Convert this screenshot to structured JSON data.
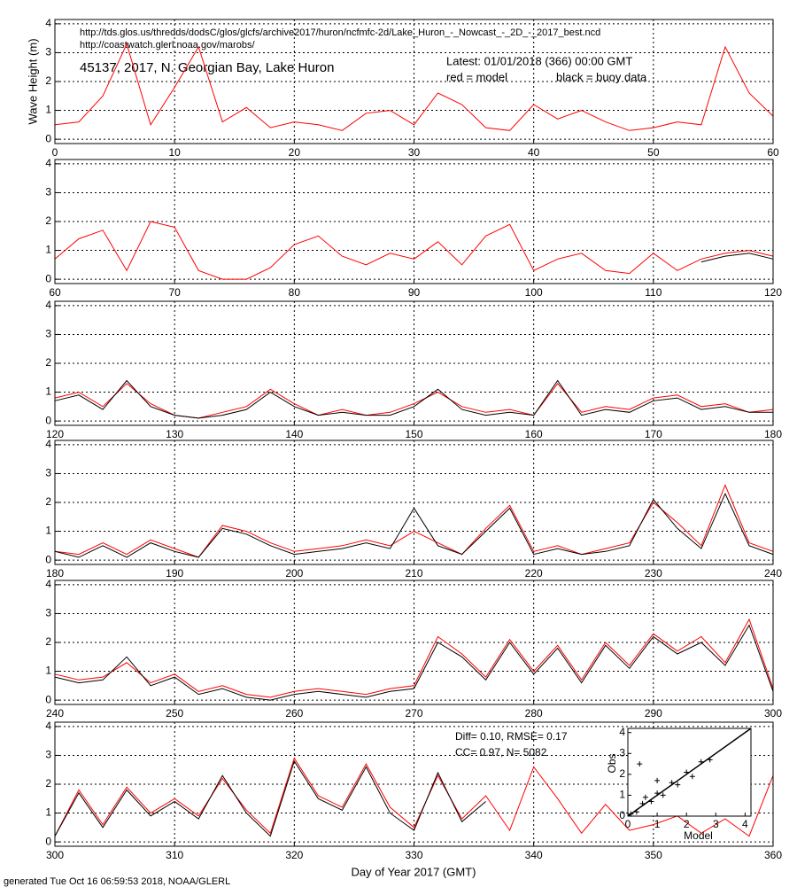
{
  "chart_data": [
    {
      "type": "line",
      "urls": [
        "http://tds.glos.us/thredds/dodsC/glos/glcfs/archive2017/huron/ncfmfc-2d/Lake_Huron_-_Nowcast_-_2D_-_2017_best.ncd",
        "http://coastwatch.glerl.noaa.gov/marobs/"
      ],
      "title": "45137, 2017, N. Georgian Bay, Lake Huron",
      "latest": "Latest: 01/01/2018 (366) 00:00 GMT",
      "legend": [
        {
          "text": "red = model",
          "color": "#ff0000"
        },
        {
          "text": "black = buoy data",
          "color": "#000000"
        }
      ],
      "ylabel": "Wave Height (m)",
      "xlim": [
        0,
        60
      ],
      "xticks": [
        0,
        10,
        20,
        30,
        40,
        50,
        60
      ],
      "ylim": [
        -0.15,
        4.15
      ],
      "yticks": [
        0,
        1,
        2,
        3,
        4
      ],
      "grid": true,
      "x": [
        0,
        2,
        4,
        6,
        8,
        10,
        12,
        14,
        16,
        18,
        20,
        22,
        24,
        26,
        28,
        30,
        32,
        34,
        36,
        38,
        40,
        42,
        44,
        46,
        48,
        50,
        52,
        54,
        56,
        58,
        60
      ],
      "series": [
        {
          "name": "model",
          "color": "#ff0000",
          "values": [
            0.5,
            0.6,
            1.5,
            3.3,
            0.5,
            1.8,
            3.2,
            0.6,
            1.1,
            0.4,
            0.6,
            0.5,
            0.3,
            0.9,
            1.0,
            0.5,
            1.6,
            1.2,
            0.4,
            0.3,
            1.2,
            0.7,
            1.0,
            0.6,
            0.3,
            0.4,
            0.6,
            0.5,
            3.2,
            1.6,
            0.8
          ]
        }
      ]
    },
    {
      "type": "line",
      "xlim": [
        60,
        120
      ],
      "xticks": [
        60,
        70,
        80,
        90,
        100,
        110,
        120
      ],
      "ylim": [
        -0.15,
        4.15
      ],
      "yticks": [
        0,
        1,
        2,
        3,
        4
      ],
      "grid": true,
      "x": [
        60,
        62,
        64,
        66,
        68,
        70,
        72,
        74,
        76,
        78,
        80,
        82,
        84,
        86,
        88,
        90,
        92,
        94,
        96,
        98,
        100,
        102,
        104,
        106,
        108,
        110,
        112,
        114,
        116,
        118,
        120
      ],
      "series": [
        {
          "name": "model",
          "color": "#ff0000",
          "values": [
            0.7,
            1.4,
            1.7,
            0.3,
            2.0,
            1.8,
            0.3,
            0.0,
            0.0,
            0.4,
            1.2,
            1.5,
            0.8,
            0.5,
            0.9,
            0.7,
            1.3,
            0.5,
            1.5,
            1.9,
            0.3,
            0.7,
            0.9,
            0.3,
            0.2,
            0.9,
            0.3,
            0.7,
            0.9,
            1.0,
            0.8
          ]
        },
        {
          "name": "buoy data",
          "color": "#000000",
          "values": [
            null,
            null,
            null,
            null,
            null,
            null,
            null,
            null,
            null,
            null,
            null,
            null,
            null,
            null,
            null,
            null,
            null,
            null,
            null,
            null,
            null,
            null,
            null,
            null,
            null,
            null,
            null,
            0.6,
            0.8,
            0.9,
            0.7
          ]
        }
      ]
    },
    {
      "type": "line",
      "xlim": [
        120,
        180
      ],
      "xticks": [
        120,
        130,
        140,
        150,
        160,
        170,
        180
      ],
      "ylim": [
        -0.15,
        4.15
      ],
      "yticks": [
        0,
        1,
        2,
        3,
        4
      ],
      "grid": true,
      "x": [
        120,
        122,
        124,
        126,
        128,
        130,
        132,
        134,
        136,
        138,
        140,
        142,
        144,
        146,
        148,
        150,
        152,
        154,
        156,
        158,
        160,
        162,
        164,
        166,
        168,
        170,
        172,
        174,
        176,
        178,
        180
      ],
      "series": [
        {
          "name": "model",
          "color": "#ff0000",
          "values": [
            0.8,
            1.0,
            0.5,
            1.3,
            0.6,
            0.2,
            0.1,
            0.3,
            0.5,
            1.1,
            0.6,
            0.2,
            0.4,
            0.2,
            0.3,
            0.6,
            1.0,
            0.5,
            0.3,
            0.4,
            0.2,
            1.3,
            0.3,
            0.5,
            0.4,
            0.8,
            0.9,
            0.5,
            0.6,
            0.3,
            0.4
          ]
        },
        {
          "name": "buoy data",
          "color": "#000000",
          "values": [
            0.7,
            0.9,
            0.4,
            1.4,
            0.5,
            0.2,
            0.1,
            0.2,
            0.4,
            1.0,
            0.5,
            0.2,
            0.3,
            0.2,
            0.2,
            0.5,
            1.1,
            0.4,
            0.2,
            0.3,
            0.2,
            1.4,
            0.2,
            0.4,
            0.3,
            0.7,
            0.8,
            0.4,
            0.5,
            0.3,
            0.3
          ]
        }
      ]
    },
    {
      "type": "line",
      "xlim": [
        180,
        240
      ],
      "xticks": [
        180,
        190,
        200,
        210,
        220,
        230,
        240
      ],
      "ylim": [
        -0.15,
        4.15
      ],
      "yticks": [
        0,
        1,
        2,
        3,
        4
      ],
      "grid": true,
      "x": [
        180,
        182,
        184,
        186,
        188,
        190,
        192,
        194,
        196,
        198,
        200,
        202,
        204,
        206,
        208,
        210,
        212,
        214,
        216,
        218,
        220,
        222,
        224,
        226,
        228,
        230,
        232,
        234,
        236,
        238,
        240
      ],
      "series": [
        {
          "name": "model",
          "color": "#ff0000",
          "values": [
            0.3,
            0.2,
            0.6,
            0.2,
            0.7,
            0.4,
            0.1,
            1.2,
            1.0,
            0.6,
            0.3,
            0.4,
            0.5,
            0.7,
            0.5,
            1.0,
            0.6,
            0.2,
            1.1,
            1.9,
            0.3,
            0.5,
            0.2,
            0.4,
            0.6,
            2.0,
            1.3,
            0.5,
            2.6,
            0.6,
            0.3
          ]
        },
        {
          "name": "buoy data",
          "color": "#000000",
          "values": [
            0.3,
            0.1,
            0.5,
            0.1,
            0.6,
            0.3,
            0.1,
            1.1,
            0.9,
            0.5,
            0.2,
            0.3,
            0.4,
            0.6,
            0.4,
            1.8,
            0.5,
            0.2,
            1.0,
            1.8,
            0.2,
            0.4,
            0.2,
            0.3,
            0.5,
            2.1,
            1.1,
            0.4,
            2.3,
            0.5,
            0.2
          ]
        }
      ]
    },
    {
      "type": "line",
      "xlim": [
        240,
        300
      ],
      "xticks": [
        240,
        250,
        260,
        270,
        280,
        290,
        300
      ],
      "ylim": [
        -0.15,
        4.15
      ],
      "yticks": [
        0,
        1,
        2,
        3,
        4
      ],
      "grid": true,
      "x": [
        240,
        242,
        244,
        246,
        248,
        250,
        252,
        254,
        256,
        258,
        260,
        262,
        264,
        266,
        268,
        270,
        272,
        274,
        276,
        278,
        280,
        282,
        284,
        286,
        288,
        290,
        292,
        294,
        296,
        298,
        300
      ],
      "series": [
        {
          "name": "model",
          "color": "#ff0000",
          "values": [
            0.9,
            0.7,
            0.8,
            1.3,
            0.6,
            0.9,
            0.3,
            0.5,
            0.2,
            0.1,
            0.3,
            0.4,
            0.3,
            0.2,
            0.4,
            0.5,
            2.2,
            1.6,
            0.8,
            2.1,
            1.0,
            1.9,
            0.7,
            2.0,
            1.2,
            2.3,
            1.7,
            2.2,
            1.3,
            2.8,
            0.4
          ]
        },
        {
          "name": "buoy data",
          "color": "#000000",
          "values": [
            0.8,
            0.6,
            0.7,
            1.5,
            0.5,
            0.8,
            0.2,
            0.4,
            0.1,
            0.0,
            0.2,
            0.3,
            0.2,
            0.1,
            0.3,
            0.4,
            2.0,
            1.5,
            0.7,
            2.0,
            0.9,
            1.8,
            0.6,
            1.9,
            1.1,
            2.2,
            1.6,
            2.0,
            1.2,
            2.6,
            0.3
          ]
        }
      ]
    },
    {
      "type": "line",
      "xlim": [
        300,
        360
      ],
      "xticks": [
        300,
        310,
        320,
        330,
        340,
        350,
        360
      ],
      "ylim": [
        -0.15,
        4.15
      ],
      "yticks": [
        0,
        1,
        2,
        3,
        4
      ],
      "grid": true,
      "xlabel": "Day of Year 2017 (GMT)",
      "annotations": [
        "Diff= 0.10,  RMSE= 0.17",
        "CC= 0.97,  N= 5082"
      ],
      "footer": "generated Tue Oct 16 06:59:53 2018, NOAA/GLERL",
      "x": [
        300,
        302,
        304,
        306,
        308,
        310,
        312,
        314,
        316,
        318,
        320,
        322,
        324,
        326,
        328,
        330,
        332,
        334,
        336,
        338,
        340,
        342,
        344,
        346,
        348,
        350,
        352,
        354,
        356,
        358,
        360
      ],
      "series": [
        {
          "name": "model",
          "color": "#ff0000",
          "values": [
            0.2,
            1.8,
            0.6,
            1.9,
            1.0,
            1.5,
            0.9,
            2.2,
            1.1,
            0.3,
            2.9,
            1.6,
            1.2,
            2.7,
            1.2,
            0.5,
            2.3,
            0.8,
            1.6,
            0.4,
            2.6,
            1.5,
            0.3,
            1.3,
            0.4,
            0.6,
            0.9,
            0.3,
            0.8,
            0.2,
            2.3
          ]
        },
        {
          "name": "buoy data",
          "color": "#000000",
          "values": [
            0.2,
            1.7,
            0.5,
            1.8,
            0.9,
            1.4,
            0.8,
            2.3,
            1.0,
            0.2,
            2.8,
            1.5,
            1.1,
            2.6,
            1.0,
            0.4,
            2.4,
            0.7,
            1.4,
            null,
            null,
            null,
            null,
            null,
            null,
            null,
            null,
            null,
            null,
            null,
            null
          ]
        }
      ]
    },
    {
      "type": "scatter",
      "xlabel": "Model",
      "ylabel": "Obs",
      "xlim": [
        0,
        4.2
      ],
      "ylim": [
        0,
        4.2
      ],
      "xticks": [
        0,
        1,
        2,
        3,
        4
      ],
      "yticks": [
        0,
        1,
        2,
        3,
        4
      ],
      "color": "#000000",
      "x": [
        0.1,
        0.3,
        0.5,
        0.8,
        1.0,
        1.2,
        1.5,
        1.7,
        2.0,
        2.2,
        2.5,
        0.4,
        1.0,
        2.8,
        0.6
      ],
      "y": [
        0.1,
        0.2,
        0.6,
        0.7,
        1.1,
        1.0,
        1.6,
        1.5,
        2.1,
        1.9,
        2.6,
        2.5,
        1.7,
        2.7,
        0.9
      ]
    }
  ]
}
